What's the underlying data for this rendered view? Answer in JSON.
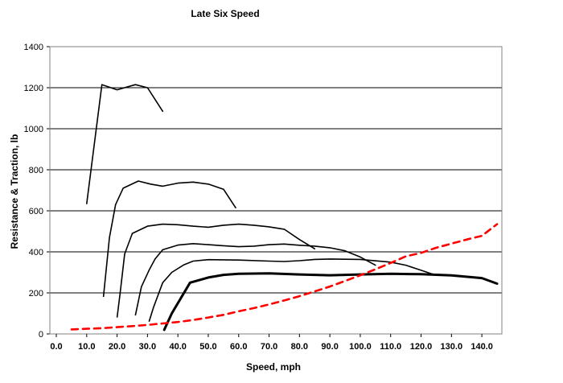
{
  "chart_data": {
    "type": "line",
    "title": "Late Six Speed",
    "xlabel": "Speed, mph",
    "ylabel": "Resistance & Traction, lb",
    "xlim": [
      0,
      145
    ],
    "ylim": [
      0,
      1400
    ],
    "x_ticks": [
      "0.0",
      "10.0",
      "20.0",
      "30.0",
      "40.0",
      "50.0",
      "60.0",
      "70.0",
      "80.0",
      "90.0",
      "100.0",
      "110.0",
      "120.0",
      "130.0",
      "140.0"
    ],
    "y_ticks": [
      "0",
      "200",
      "400",
      "600",
      "800",
      "1000",
      "1200",
      "1400"
    ],
    "grid": "horizontal",
    "legend": "none",
    "series": [
      {
        "color": "#000000",
        "style": "solid",
        "points": [
          [
            10,
            635
          ],
          [
            15,
            1215
          ],
          [
            20,
            1190
          ],
          [
            26,
            1215
          ],
          [
            30,
            1200
          ],
          [
            35,
            1085
          ]
        ]
      },
      {
        "color": "#000000",
        "style": "solid",
        "points": [
          [
            19.5,
            630
          ],
          [
            22,
            710
          ],
          [
            27,
            745
          ],
          [
            31,
            730
          ],
          [
            35,
            720
          ],
          [
            40,
            735
          ],
          [
            45,
            740
          ],
          [
            50,
            730
          ],
          [
            55,
            705
          ],
          [
            59,
            615
          ]
        ]
      },
      {
        "color": "#000000",
        "style": "solid",
        "points": [
          [
            25,
            490
          ],
          [
            30,
            525
          ],
          [
            35,
            535
          ],
          [
            40,
            532
          ],
          [
            45,
            525
          ],
          [
            50,
            520
          ],
          [
            55,
            530
          ],
          [
            60,
            535
          ],
          [
            65,
            530
          ],
          [
            70,
            522
          ],
          [
            75,
            510
          ],
          [
            80,
            460
          ],
          [
            85,
            415
          ]
        ]
      },
      {
        "color": "#000000",
        "style": "solid",
        "points": [
          [
            32.5,
            365
          ],
          [
            35,
            410
          ],
          [
            40,
            433
          ],
          [
            45,
            440
          ],
          [
            50,
            435
          ],
          [
            55,
            430
          ],
          [
            60,
            425
          ],
          [
            65,
            428
          ],
          [
            70,
            435
          ],
          [
            75,
            438
          ],
          [
            80,
            432
          ],
          [
            85,
            428
          ],
          [
            90,
            420
          ],
          [
            95,
            405
          ],
          [
            100,
            375
          ],
          [
            105,
            335
          ]
        ]
      },
      {
        "color": "#000000",
        "style": "solid",
        "points": [
          [
            38,
            300
          ],
          [
            42,
            337
          ],
          [
            45,
            355
          ],
          [
            50,
            362
          ],
          [
            60,
            360
          ],
          [
            70,
            355
          ],
          [
            75,
            353
          ],
          [
            80,
            357
          ],
          [
            85,
            363
          ],
          [
            90,
            365
          ],
          [
            100,
            363
          ],
          [
            110,
            350
          ],
          [
            115,
            335
          ],
          [
            120,
            310
          ],
          [
            125,
            285
          ]
        ]
      },
      {
        "color": "#000000",
        "style": "bold",
        "points": [
          [
            35.5,
            20
          ],
          [
            38,
            100
          ],
          [
            44,
            250
          ],
          [
            50,
            275
          ],
          [
            55,
            288
          ],
          [
            60,
            293
          ],
          [
            70,
            295
          ],
          [
            80,
            290
          ],
          [
            90,
            286
          ],
          [
            100,
            290
          ],
          [
            110,
            293
          ],
          [
            120,
            291
          ],
          [
            130,
            285
          ],
          [
            140,
            272
          ],
          [
            145,
            245
          ]
        ]
      },
      {
        "color": "#ff0000",
        "style": "dashed",
        "points": [
          [
            5,
            22
          ],
          [
            10,
            25
          ],
          [
            15,
            28
          ],
          [
            20,
            33
          ],
          [
            25,
            38
          ],
          [
            30,
            44
          ],
          [
            35,
            51
          ],
          [
            40,
            58
          ],
          [
            45,
            68
          ],
          [
            50,
            80
          ],
          [
            55,
            93
          ],
          [
            60,
            110
          ],
          [
            65,
            126
          ],
          [
            70,
            144
          ],
          [
            75,
            163
          ],
          [
            80,
            184
          ],
          [
            85,
            207
          ],
          [
            90,
            231
          ],
          [
            95,
            258
          ],
          [
            100,
            286
          ],
          [
            105,
            315
          ],
          [
            110,
            346
          ],
          [
            115,
            378
          ],
          [
            120,
            395
          ],
          [
            125,
            420
          ],
          [
            130,
            440
          ],
          [
            135,
            460
          ],
          [
            140,
            478
          ],
          [
            145,
            535
          ]
        ]
      }
    ],
    "extension_segments": [
      {
        "color": "#000000",
        "points": [
          [
            15.5,
            180
          ],
          [
            17.5,
            470
          ],
          [
            19.5,
            630
          ]
        ]
      },
      {
        "color": "#000000",
        "points": [
          [
            20,
            80
          ],
          [
            21,
            200
          ],
          [
            22.5,
            390
          ],
          [
            25,
            490
          ]
        ]
      },
      {
        "color": "#000000",
        "points": [
          [
            26,
            90
          ],
          [
            28,
            230
          ],
          [
            30.5,
            310
          ],
          [
            32.5,
            365
          ]
        ]
      },
      {
        "color": "#000000",
        "points": [
          [
            30.5,
            60
          ],
          [
            32,
            130
          ],
          [
            35,
            250
          ],
          [
            38,
            300
          ]
        ]
      }
    ]
  }
}
